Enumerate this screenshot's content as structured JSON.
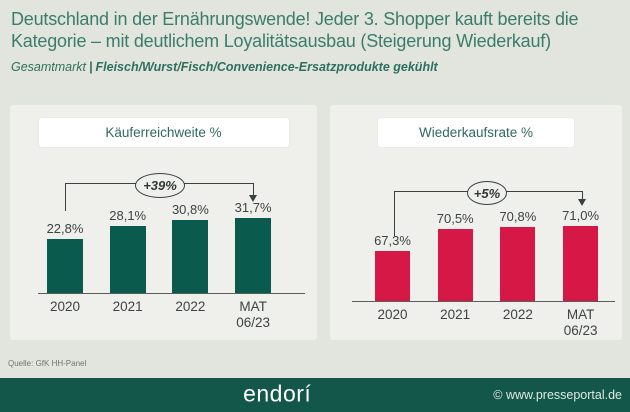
{
  "header": {
    "title_line1": "Deutschland in der Ernährungswende! Jeder 3. Shopper kauft bereits die",
    "title_line2": "Kategorie – mit deutlichem Loyalitätsausbau (Steigerung Wiederkauf)",
    "subtitle_prefix": "Gesamtmarkt",
    "subtitle_separator": "|",
    "subtitle_emphasis": "Fleisch/Wurst/Fisch/Convenience-Ersatzprodukte gekühlt"
  },
  "source": "Quelle: GfK HH-Panel",
  "footer": {
    "brand": "endorí",
    "credit": "© www.presseportal.de"
  },
  "colors": {
    "page_bg": "#e1e5de",
    "panel_bg": "#efefec",
    "header_text": "#3b7c6c",
    "green_bar": "#0b5a4e",
    "red_bar": "#d51845",
    "footer_bg": "#12574a",
    "label_text": "#3d4442"
  },
  "chart_data": [
    {
      "type": "bar",
      "title": "Käuferreichweite %",
      "categories": [
        "2020",
        "2021",
        "2022",
        "MAT 06/23"
      ],
      "values": [
        22.8,
        28.1,
        30.8,
        31.7
      ],
      "value_labels": [
        "22,8%",
        "28,1%",
        "30,8%",
        "31,7%"
      ],
      "annotation": "+39%",
      "bar_color": "#0b5a4e",
      "ylim": [
        0,
        35
      ],
      "grid": false,
      "legend": "none"
    },
    {
      "type": "bar",
      "title": "Wiederkaufsrate %",
      "categories": [
        "2020",
        "2021",
        "2022",
        "MAT 06/23"
      ],
      "values": [
        67.3,
        70.5,
        70.8,
        71.0
      ],
      "value_labels": [
        "67,3%",
        "70,5%",
        "70,8%",
        "71,0%"
      ],
      "annotation": "+5%",
      "bar_color": "#d51845",
      "ylim": [
        60,
        72
      ],
      "grid": false,
      "legend": "none"
    }
  ]
}
